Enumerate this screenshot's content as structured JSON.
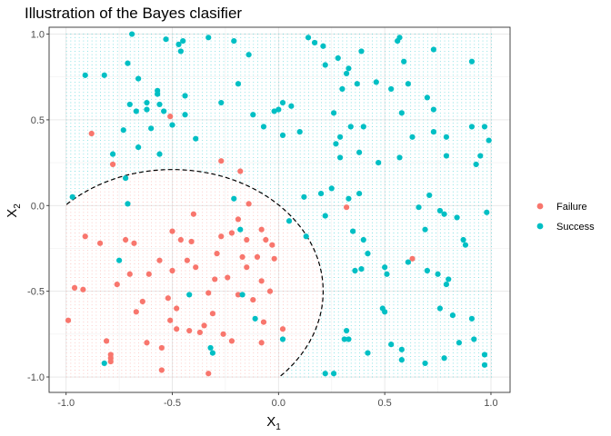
{
  "chart_data": {
    "type": "scatter",
    "title": "Illustration of the Bayes clasifier",
    "xlabel": "X",
    "xlabel_sub": "1",
    "ylabel": "X",
    "ylabel_sub": "2",
    "xlim": [
      -1.08,
      1.09
    ],
    "ylim": [
      -1.09,
      1.04
    ],
    "x_ticks": [
      -1.0,
      -0.5,
      0.0,
      0.5,
      1.0
    ],
    "x_tick_labels": [
      "-1.0",
      "-0.5",
      "0.0",
      "0.5",
      "1.0"
    ],
    "y_ticks": [
      -1.0,
      -0.5,
      0.0,
      0.5,
      1.0
    ],
    "y_tick_labels": [
      "-1.0",
      "-0.5",
      "0.0",
      "0.5",
      "1.0"
    ],
    "grid": true,
    "legend_position": "right",
    "decision_boundary": {
      "style": "dashed",
      "shape": "circle",
      "center": [
        -0.5,
        -0.5
      ],
      "radius": 0.71,
      "region_colors": {
        "Failure": "#F8766D",
        "Success": "#00BFC4"
      }
    },
    "series": [
      {
        "name": "Failure",
        "color": "#F8766D",
        "points": [
          [
            -0.88,
            0.42
          ],
          [
            -0.51,
            0.52
          ],
          [
            -0.78,
            0.24
          ],
          [
            -0.27,
            0.26
          ],
          [
            -0.18,
            0.2
          ],
          [
            -0.99,
            -0.67
          ],
          [
            -0.96,
            -0.48
          ],
          [
            -0.92,
            -0.49
          ],
          [
            -0.91,
            -0.18
          ],
          [
            -0.84,
            -0.22
          ],
          [
            -0.72,
            -0.2
          ],
          [
            -0.7,
            -0.4
          ],
          [
            -0.76,
            -0.46
          ],
          [
            -0.67,
            -0.62
          ],
          [
            -0.64,
            -0.56
          ],
          [
            -0.61,
            -0.4
          ],
          [
            -0.56,
            -0.32
          ],
          [
            -0.52,
            -0.54
          ],
          [
            -0.51,
            -0.67
          ],
          [
            -0.5,
            -0.38
          ],
          [
            -0.46,
            -0.2
          ],
          [
            -0.43,
            -0.32
          ],
          [
            -0.41,
            -0.21
          ],
          [
            -0.4,
            -0.05
          ],
          [
            -0.39,
            -0.36
          ],
          [
            -0.35,
            -0.7
          ],
          [
            -0.33,
            -0.51
          ],
          [
            -0.29,
            -0.28
          ],
          [
            -0.24,
            -0.42
          ],
          [
            -0.22,
            -0.16
          ],
          [
            -0.19,
            -0.08
          ],
          [
            -0.17,
            -0.3
          ],
          [
            -0.15,
            -0.2
          ],
          [
            -0.12,
            -0.55
          ],
          [
            -0.1,
            -0.3
          ],
          [
            -0.08,
            -0.44
          ],
          [
            -0.06,
            -0.2
          ],
          [
            -0.04,
            -0.5
          ],
          [
            -0.02,
            -0.31
          ],
          [
            -0.07,
            -0.68
          ],
          [
            -0.22,
            -0.79
          ],
          [
            -0.19,
            -0.52
          ],
          [
            -0.3,
            -0.43
          ],
          [
            -0.48,
            -0.72
          ],
          [
            -0.42,
            -0.73
          ],
          [
            -0.37,
            -0.74
          ],
          [
            -0.31,
            -0.63
          ],
          [
            -0.26,
            -0.75
          ],
          [
            -0.55,
            -0.83
          ],
          [
            -0.62,
            -0.8
          ],
          [
            -0.81,
            -0.79
          ],
          [
            -0.79,
            -0.89
          ],
          [
            -0.79,
            -0.91
          ],
          [
            -0.79,
            -0.87
          ],
          [
            -0.55,
            -0.96
          ],
          [
            -0.33,
            -0.98
          ],
          [
            -0.08,
            -0.8
          ],
          [
            -0.03,
            -0.23
          ],
          [
            -0.27,
            -0.18
          ],
          [
            -0.15,
            -0.36
          ],
          [
            -0.5,
            -0.15
          ],
          [
            -0.14,
            0.01
          ],
          [
            0.32,
            -0.01
          ],
          [
            0.63,
            -0.31
          ],
          [
            0.02,
            -0.72
          ],
          [
            -0.08,
            -0.14
          ],
          [
            -0.48,
            -0.6
          ],
          [
            -0.68,
            -0.22
          ]
        ]
      },
      {
        "name": "Success",
        "color": "#00BFC4",
        "points": [
          [
            -0.69,
            1.0
          ],
          [
            -0.53,
            0.97
          ],
          [
            -0.47,
            0.94
          ],
          [
            -0.45,
            0.96
          ],
          [
            -0.46,
            0.9
          ],
          [
            -0.33,
            0.98
          ],
          [
            -0.21,
            0.96
          ],
          [
            -0.14,
            0.88
          ],
          [
            0.14,
            0.98
          ],
          [
            0.17,
            0.95
          ],
          [
            0.21,
            0.93
          ],
          [
            0.28,
            0.86
          ],
          [
            0.33,
            0.8
          ],
          [
            0.39,
            0.9
          ],
          [
            0.37,
            0.71
          ],
          [
            0.32,
            0.77
          ],
          [
            0.3,
            0.68
          ],
          [
            0.56,
            0.96
          ],
          [
            0.57,
            0.98
          ],
          [
            0.59,
            0.84
          ],
          [
            0.73,
            0.91
          ],
          [
            0.91,
            0.84
          ],
          [
            -0.71,
            0.83
          ],
          [
            -0.91,
            0.76
          ],
          [
            -0.82,
            0.76
          ],
          [
            -0.66,
            0.74
          ],
          [
            -0.57,
            0.67
          ],
          [
            -0.57,
            0.65
          ],
          [
            -0.62,
            0.6
          ],
          [
            -0.7,
            0.59
          ],
          [
            -0.62,
            0.56
          ],
          [
            -0.56,
            0.59
          ],
          [
            -0.54,
            0.55
          ],
          [
            -0.5,
            0.47
          ],
          [
            -0.44,
            0.53
          ],
          [
            -0.44,
            0.64
          ],
          [
            -0.39,
            0.39
          ],
          [
            -0.27,
            0.6
          ],
          [
            -0.19,
            0.71
          ],
          [
            -0.12,
            0.53
          ],
          [
            -0.07,
            0.46
          ],
          [
            -0.02,
            0.55
          ],
          [
            0.0,
            0.56
          ],
          [
            0.02,
            0.6
          ],
          [
            0.06,
            0.58
          ],
          [
            0.22,
            0.82
          ],
          [
            0.26,
            0.54
          ],
          [
            0.34,
            0.46
          ],
          [
            0.4,
            0.46
          ],
          [
            0.46,
            0.72
          ],
          [
            0.53,
            0.68
          ],
          [
            0.58,
            0.54
          ],
          [
            0.61,
            0.71
          ],
          [
            0.7,
            0.63
          ],
          [
            0.73,
            0.56
          ],
          [
            0.63,
            0.4
          ],
          [
            0.73,
            0.43
          ],
          [
            0.79,
            0.4
          ],
          [
            0.91,
            0.46
          ],
          [
            0.97,
            0.46
          ],
          [
            0.99,
            0.38
          ],
          [
            0.95,
            0.29
          ],
          [
            0.93,
            0.24
          ],
          [
            0.79,
            0.29
          ],
          [
            0.57,
            0.28
          ],
          [
            0.47,
            0.25
          ],
          [
            0.38,
            0.31
          ],
          [
            0.29,
            0.28
          ],
          [
            0.29,
            0.4
          ],
          [
            0.27,
            0.36
          ],
          [
            0.1,
            0.43
          ],
          [
            0.02,
            0.41
          ],
          [
            -0.78,
            0.3
          ],
          [
            -0.73,
            0.44
          ],
          [
            -0.67,
            0.55
          ],
          [
            -0.6,
            0.45
          ],
          [
            -0.56,
            0.3
          ],
          [
            -0.72,
            0.16
          ],
          [
            -0.66,
            0.34
          ],
          [
            -0.97,
            0.05
          ],
          [
            -0.71,
            0.01
          ],
          [
            0.12,
            0.05
          ],
          [
            0.2,
            0.07
          ],
          [
            0.25,
            0.1
          ],
          [
            0.33,
            0.04
          ],
          [
            0.38,
            0.07
          ],
          [
            0.22,
            -0.06
          ],
          [
            0.13,
            -0.18
          ],
          [
            0.35,
            -0.15
          ],
          [
            0.4,
            -0.2
          ],
          [
            0.42,
            -0.28
          ],
          [
            0.39,
            -0.37
          ],
          [
            0.36,
            -0.38
          ],
          [
            0.5,
            -0.36
          ],
          [
            0.51,
            -0.4
          ],
          [
            0.61,
            -0.33
          ],
          [
            0.66,
            -0.01
          ],
          [
            0.69,
            -0.14
          ],
          [
            0.71,
            0.06
          ],
          [
            0.76,
            -0.03
          ],
          [
            0.78,
            -0.05
          ],
          [
            0.7,
            -0.38
          ],
          [
            0.75,
            -0.4
          ],
          [
            0.8,
            -0.43
          ],
          [
            0.79,
            -0.46
          ],
          [
            0.84,
            -0.07
          ],
          [
            0.87,
            -0.2
          ],
          [
            0.88,
            -0.23
          ],
          [
            0.98,
            -0.04
          ],
          [
            0.76,
            -0.6
          ],
          [
            0.82,
            -0.64
          ],
          [
            0.91,
            -0.66
          ],
          [
            0.85,
            -0.8
          ],
          [
            0.92,
            -0.78
          ],
          [
            0.97,
            -0.87
          ],
          [
            0.97,
            -0.93
          ],
          [
            0.78,
            -0.89
          ],
          [
            0.69,
            -0.92
          ],
          [
            0.58,
            -0.9
          ],
          [
            0.58,
            -0.84
          ],
          [
            0.53,
            -0.81
          ],
          [
            0.5,
            -0.62
          ],
          [
            0.49,
            -0.6
          ],
          [
            0.42,
            -0.86
          ],
          [
            0.33,
            -0.78
          ],
          [
            0.32,
            -0.73
          ],
          [
            0.31,
            -0.78
          ],
          [
            0.22,
            -0.98
          ],
          [
            0.26,
            -0.98
          ],
          [
            0.02,
            -0.78
          ],
          [
            -0.11,
            -0.66
          ],
          [
            -0.17,
            -0.52
          ],
          [
            -0.42,
            -0.52
          ],
          [
            -0.31,
            -0.86
          ],
          [
            -0.32,
            -0.83
          ],
          [
            -0.18,
            -0.14
          ],
          [
            -0.75,
            -0.32
          ],
          [
            -0.82,
            -0.92
          ],
          [
            -0.21,
            0.04
          ],
          [
            0.05,
            -0.09
          ]
        ]
      }
    ]
  }
}
